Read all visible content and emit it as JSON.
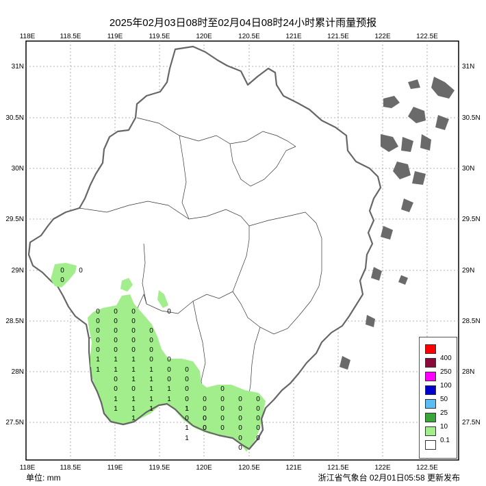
{
  "title": "2025年02月03日08时至02月04日08时24小时累计雨量预报",
  "footer": {
    "unit": "单位: mm",
    "issuer": "浙江省气象台 02月01日05:58 更新发布"
  },
  "axes": {
    "lon_labels": [
      "118E",
      "118.5E",
      "119E",
      "119.5E",
      "120E",
      "120.5E",
      "121E",
      "121.5E",
      "122E",
      "122.5E"
    ],
    "lat_labels": [
      "31N",
      "30.5N",
      "30N",
      "29.5N",
      "29N",
      "28.5N",
      "28N",
      "27.5N"
    ]
  },
  "legend": {
    "labels": [
      "400",
      "250",
      "100",
      "50",
      "25",
      "10",
      "0.1"
    ],
    "colors": [
      "#ff0000",
      "#8b0a3c",
      "#ff00ff",
      "#0000cc",
      "#5bbdf5",
      "#3aa63a",
      "#a3ee8c",
      "#ffffff"
    ]
  },
  "rain_area_color": "#a3ee8c",
  "values": {
    "ne": [
      "0",
      "0",
      "0"
    ],
    "c1": [
      "0"
    ],
    "col1": [
      "0",
      "0",
      "0",
      "0",
      "0",
      "1",
      "1"
    ],
    "col2": [
      "0",
      "0",
      "0",
      "0",
      "0",
      "1",
      "1",
      "0",
      "0",
      "1",
      "1"
    ],
    "col3": [
      "0",
      "0",
      "0",
      "0",
      "0",
      "1",
      "1",
      "1",
      "0",
      "1",
      "1",
      "1"
    ],
    "col4": [
      "0",
      "0",
      "0",
      "0",
      "1",
      "1",
      "1",
      "1",
      "1"
    ],
    "col5": [
      "0",
      "0",
      "0",
      "1",
      "1"
    ],
    "col6": [
      "0",
      "0",
      "0",
      "0",
      "1",
      "0",
      "1",
      "1",
      "1"
    ],
    "col7": [
      "0",
      "0",
      "0",
      "0",
      "0",
      "0"
    ],
    "col8": [
      "0",
      "0",
      "0",
      "0",
      "0"
    ],
    "col9": [
      "0",
      "0",
      "0",
      "0",
      "0",
      "0"
    ],
    "col10": [
      "0",
      "0",
      "0",
      "0",
      "0"
    ]
  }
}
